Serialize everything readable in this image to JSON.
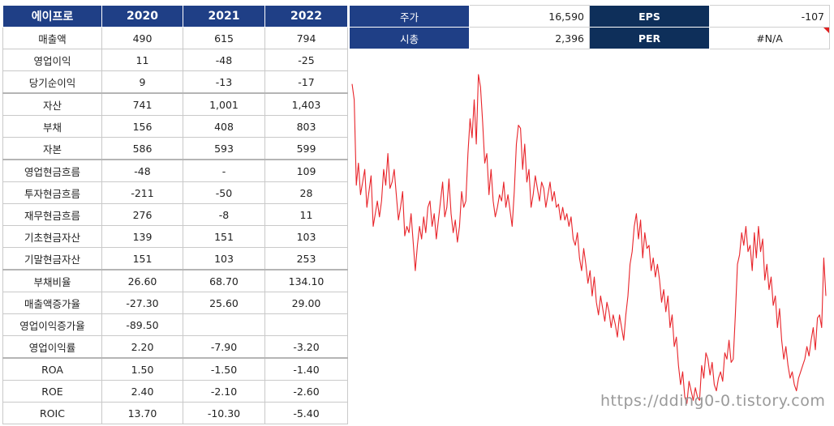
{
  "table": {
    "company": "에이프로",
    "years": [
      "2020",
      "2021",
      "2022"
    ],
    "groups": [
      [
        {
          "label": "매출액",
          "values": [
            "490",
            "615",
            "794"
          ]
        },
        {
          "label": "영업이익",
          "values": [
            "11",
            "-48",
            "-25"
          ]
        },
        {
          "label": "당기순이익",
          "values": [
            "9",
            "-13",
            "-17"
          ]
        }
      ],
      [
        {
          "label": "자산",
          "values": [
            "741",
            "1,001",
            "1,403"
          ]
        },
        {
          "label": "부채",
          "values": [
            "156",
            "408",
            "803"
          ]
        },
        {
          "label": "자본",
          "values": [
            "586",
            "593",
            "599"
          ]
        }
      ],
      [
        {
          "label": "영업현금흐름",
          "values": [
            "-48",
            "-",
            "109"
          ]
        },
        {
          "label": "투자현금흐름",
          "values": [
            "-211",
            "-50",
            "28"
          ]
        },
        {
          "label": "재무현금흐름",
          "values": [
            "276",
            "-8",
            "11"
          ]
        },
        {
          "label": "기초현금자산",
          "values": [
            "139",
            "151",
            "103"
          ]
        },
        {
          "label": "기말현금자산",
          "values": [
            "151",
            "103",
            "253"
          ]
        }
      ],
      [
        {
          "label": "부채비율",
          "values": [
            "26.60",
            "68.70",
            "134.10"
          ]
        },
        {
          "label": "매출액증가율",
          "values": [
            "-27.30",
            "25.60",
            "29.00"
          ]
        },
        {
          "label": "영업이익증가율",
          "values": [
            "-89.50",
            "",
            ""
          ]
        },
        {
          "label": "영업이익률",
          "values": [
            "2.20",
            "-7.90",
            "-3.20"
          ]
        }
      ],
      [
        {
          "label": "ROA",
          "values": [
            "1.50",
            "-1.50",
            "-1.40"
          ]
        },
        {
          "label": "ROE",
          "values": [
            "2.40",
            "-2.10",
            "-2.60"
          ]
        },
        {
          "label": "ROIC",
          "values": [
            "13.70",
            "-10.30",
            "-5.40"
          ]
        }
      ]
    ]
  },
  "summary": {
    "price_label": "주가",
    "price_value": "16,590",
    "eps_label": "EPS",
    "eps_value": "-107",
    "mcap_label": "시총",
    "mcap_value": "2,396",
    "per_label": "PER",
    "per_value": "#N/A"
  },
  "watermark": "https://dding0-0.tistory.com",
  "colors": {
    "header_blue": "#1f3f86",
    "header_navy": "#0e2f5a",
    "line": "#e8242a",
    "flag": "#e02020"
  },
  "chart_data": {
    "type": "line",
    "title": "",
    "xlabel": "",
    "ylabel": "",
    "axes_visible": false,
    "grid": false,
    "ylim": [
      0,
      100
    ],
    "series": [
      {
        "values": [
          97,
          92,
          65,
          72,
          62,
          66,
          70,
          58,
          63,
          68,
          52,
          56,
          60,
          55,
          60,
          70,
          65,
          75,
          64,
          66,
          70,
          62,
          54,
          58,
          63,
          49,
          52,
          50,
          56,
          47,
          38,
          46,
          52,
          48,
          55,
          50,
          58,
          60,
          52,
          56,
          48,
          54,
          60,
          66,
          55,
          58,
          67,
          56,
          50,
          54,
          47,
          52,
          63,
          58,
          60,
          75,
          86,
          80,
          92,
          78,
          100,
          96,
          85,
          72,
          75,
          62,
          70,
          60,
          55,
          58,
          62,
          60,
          66,
          58,
          62,
          57,
          52,
          63,
          78,
          84,
          83,
          70,
          78,
          66,
          70,
          58,
          62,
          68,
          64,
          60,
          66,
          64,
          58,
          62,
          66,
          60,
          63,
          58,
          59,
          54,
          58,
          54,
          56,
          52,
          55,
          48,
          46,
          50,
          42,
          38,
          45,
          40,
          34,
          38,
          30,
          36,
          28,
          24,
          30,
          26,
          22,
          28,
          25,
          20,
          24,
          21,
          17,
          24,
          20,
          16,
          24,
          30,
          40,
          44,
          52,
          56,
          48,
          54,
          42,
          50,
          45,
          46,
          38,
          42,
          36,
          40,
          35,
          28,
          32,
          25,
          30,
          20,
          24,
          14,
          17,
          8,
          2,
          6,
          -2,
          -4,
          3,
          0,
          -3,
          1,
          -2,
          -3,
          8,
          4,
          12,
          10,
          5,
          9,
          2,
          0,
          4,
          6,
          3,
          12,
          10,
          16,
          9,
          10,
          24,
          40,
          43,
          50,
          46,
          52,
          44,
          46,
          38,
          50,
          42,
          52,
          44,
          48,
          35,
          40,
          32,
          36,
          27,
          30,
          20,
          26,
          16,
          10,
          14,
          8,
          4,
          6,
          2,
          0,
          4,
          6,
          8,
          10,
          14,
          11,
          16,
          20,
          13,
          23,
          24,
          20,
          42,
          30
        ]
      }
    ]
  }
}
